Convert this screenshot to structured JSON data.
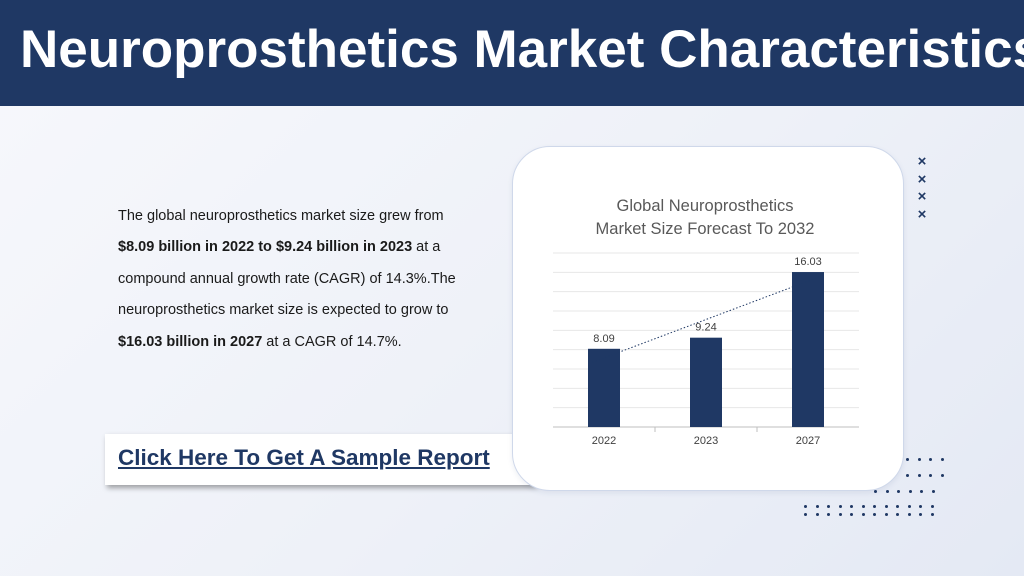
{
  "header": {
    "title": "Neuroprosthetics Market Characteristics:",
    "background": "#1f3864"
  },
  "description": {
    "part1": "The global neuroprosthetics market size grew from ",
    "bold1": "$8.09 billion in 2022 to $9.24 billion in 2023",
    "part2": " at a compound annual growth rate (CAGR) of 14.3%.The neuroprosthetics market size is expected to grow to ",
    "bold2": "$16.03 billion in 2027",
    "part3": " at a CAGR of 14.7%."
  },
  "cta": {
    "label": "Click Here To Get A Sample Report"
  },
  "decor": {
    "x_marks": [
      "×",
      "×",
      "×",
      "×"
    ],
    "icon": "dot-grid-icon"
  },
  "chart_data": {
    "type": "bar",
    "title": "Global Neuroprosthetics Market Size Forecast To 2032",
    "title_lines": [
      "Global Neuroprosthetics",
      "Market Size Forecast To 2032"
    ],
    "categories": [
      "2022",
      "2023",
      "2027"
    ],
    "values": [
      8.09,
      9.24,
      16.03
    ],
    "data_labels": [
      "8.09",
      "9.24",
      "16.03"
    ],
    "ylim": [
      0,
      18
    ],
    "grid": true,
    "trendline": true,
    "bar_color": "#1f3864",
    "xlabel": "",
    "ylabel": ""
  }
}
